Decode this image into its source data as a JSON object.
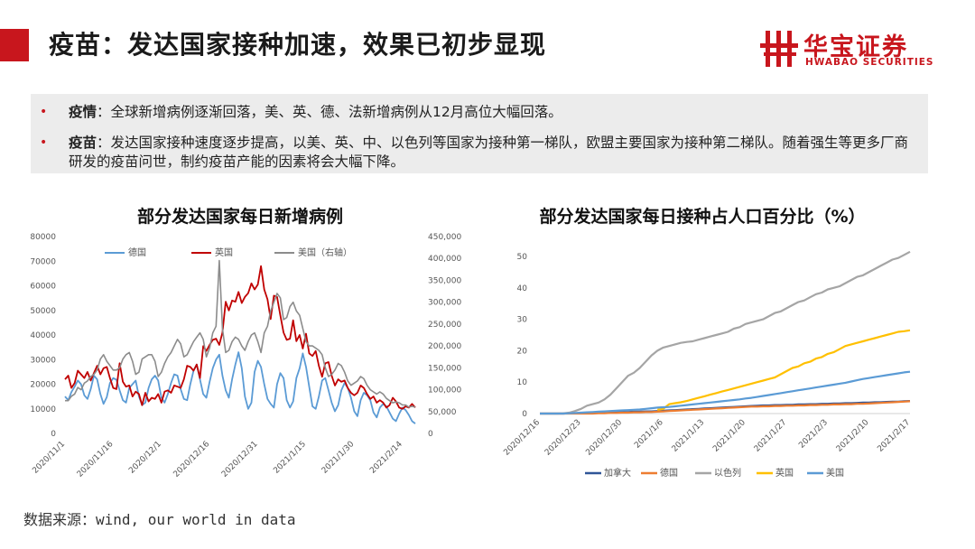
{
  "header": {
    "title": "疫苗：发达国家接种加速，效果已初步显现",
    "logo_cn": "华宝证券",
    "logo_en": "HWABAO SECURITIES",
    "accent_color": "#c8161d"
  },
  "summary": {
    "items": [
      {
        "label": "疫情",
        "text": "：全球新增病例逐渐回落，美、英、德、法新增病例从12月高位大幅回落。"
      },
      {
        "label": "疫苗",
        "text": "：发达国家接种速度逐步提高，以美、英、中、以色列等国家为接种第一梯队，欧盟主要国家为接种第二梯队。随着强生等更多厂商研发的疫苗问世，制约疫苗产能的因素将会大幅下降。"
      }
    ]
  },
  "source": "数据来源：wind, our world in data",
  "chart_data": [
    {
      "type": "line",
      "title": "部分发达国家每日新增病例",
      "x_tick_labels": [
        "2020/11/1",
        "2020/11/16",
        "2020/12/1",
        "2020/12/16",
        "2020/12/31",
        "2021/1/15",
        "2021/1/30",
        "2021/2/14"
      ],
      "y_left": {
        "range": [
          0,
          80000
        ],
        "ticks": [
          "0",
          "10000",
          "20000",
          "30000",
          "40000",
          "50000",
          "60000",
          "70000",
          "80000"
        ]
      },
      "y_right": {
        "range": [
          0,
          450000
        ],
        "ticks": [
          "0",
          "50,000",
          "100,000",
          "150,000",
          "200,000",
          "250,000",
          "300,000",
          "350,000",
          "400,000",
          "450,000"
        ]
      },
      "legend_position": "top",
      "series": [
        {
          "name": "德国",
          "axis": "left",
          "color": "#5b9bd5",
          "values": [
            15000,
            13500,
            16800,
            19000,
            21500,
            20000,
            15500,
            14000,
            18000,
            23500,
            22000,
            16000,
            12000,
            14800,
            20500,
            22500,
            21800,
            17500,
            13500,
            12500,
            18500,
            20000,
            21500,
            15000,
            11500,
            12500,
            18500,
            22000,
            23500,
            21500,
            14500,
            12500,
            16000,
            20500,
            24000,
            23500,
            18000,
            14000,
            13500,
            20000,
            25500,
            28000,
            22000,
            16000,
            14500,
            21000,
            26500,
            30000,
            32000,
            23500,
            17500,
            14500,
            22000,
            28000,
            33000,
            26500,
            15000,
            10000,
            12500,
            25000,
            29500,
            27000,
            20000,
            14000,
            12000,
            10500,
            20000,
            24500,
            22500,
            13500,
            10500,
            13000,
            22500,
            26500,
            32500,
            27000,
            19000,
            11000,
            10000,
            15000,
            21500,
            22500,
            17500,
            12500,
            9000,
            11500,
            17500,
            20500,
            18500,
            14500,
            9000,
            7000,
            13500,
            16500,
            15500,
            13500,
            8500,
            6500,
            10500,
            12000,
            11000,
            8500,
            6000,
            5000,
            8000,
            10500,
            9500,
            7500,
            5000,
            4000
          ]
        },
        {
          "name": "英国",
          "axis": "left",
          "color": "#c00000",
          "values": [
            22000,
            23500,
            18500,
            20500,
            25500,
            24000,
            22500,
            25000,
            21500,
            24500,
            27500,
            24000,
            26500,
            27000,
            22500,
            18500,
            18000,
            28500,
            21000,
            19000,
            19500,
            15000,
            17000,
            16000,
            11500,
            16500,
            13000,
            14500,
            14000,
            16000,
            12500,
            17000,
            17500,
            16500,
            19500,
            19000,
            18500,
            22000,
            27500,
            27000,
            25500,
            28000,
            22500,
            35500,
            33500,
            36000,
            38000,
            38500,
            36000,
            41000,
            53500,
            50000,
            54000,
            53500,
            57500,
            53000,
            55500,
            57000,
            61000,
            58500,
            60500,
            68000,
            58500,
            54500,
            46500,
            56000,
            55500,
            48000,
            41000,
            38000,
            38500,
            46000,
            37500,
            40000,
            34500,
            40500,
            32500,
            31500,
            33500,
            27500,
            23000,
            28500,
            29000,
            23500,
            19500,
            22000,
            21000,
            21500,
            18500,
            16500,
            15500,
            16500,
            19500,
            18500,
            16000,
            14000,
            15000,
            12500,
            13500,
            12500,
            10500,
            11500,
            14500,
            13000,
            10500,
            10000,
            11000,
            10500,
            12000,
            10500
          ]
        },
        {
          "name": "美国（右轴）",
          "axis": "right",
          "color": "#8c8c8c",
          "values": [
            75000,
            75000,
            85000,
            90000,
            105000,
            100000,
            115000,
            120000,
            130000,
            135000,
            145000,
            170000,
            180000,
            165000,
            155000,
            145000,
            145000,
            150000,
            170000,
            180000,
            185000,
            165000,
            135000,
            140000,
            170000,
            175000,
            180000,
            180000,
            165000,
            130000,
            140000,
            160000,
            175000,
            185000,
            200000,
            215000,
            205000,
            175000,
            180000,
            195000,
            210000,
            220000,
            230000,
            215000,
            175000,
            195000,
            230000,
            245000,
            395000,
            240000,
            185000,
            190000,
            210000,
            220000,
            215000,
            200000,
            190000,
            210000,
            225000,
            230000,
            210000,
            185000,
            230000,
            245000,
            280000,
            300000,
            320000,
            310000,
            260000,
            265000,
            290000,
            300000,
            280000,
            270000,
            240000,
            210000,
            200000,
            200000,
            195000,
            190000,
            180000,
            150000,
            130000,
            135000,
            145000,
            160000,
            155000,
            140000,
            120000,
            110000,
            115000,
            120000,
            130000,
            125000,
            110000,
            100000,
            95000,
            90000,
            95000,
            90000,
            80000,
            75000,
            70000,
            72000,
            70000,
            65000,
            65000,
            60000,
            62000,
            60000
          ]
        }
      ]
    },
    {
      "type": "line",
      "title": "部分发达国家每日接种占人口百分比（%）",
      "x_tick_labels": [
        "2020/12/16",
        "2020/12/23",
        "2020/12/30",
        "2021/1/6",
        "2021/1/13",
        "2021/1/20",
        "2021/1/27",
        "2021/2/3",
        "2021/2/10",
        "2021/2/17"
      ],
      "y": {
        "range": [
          0,
          50
        ],
        "ticks": [
          "0",
          "10",
          "20",
          "30",
          "40",
          "50"
        ]
      },
      "legend_position": "bottom",
      "series": [
        {
          "name": "加拿大",
          "color": "#2f5597",
          "values": [
            0,
            0,
            0,
            0,
            0,
            0.1,
            0.1,
            0.1,
            0.2,
            0.2,
            0.3,
            0.3,
            0.4,
            0.4,
            0.5,
            0.5,
            0.6,
            0.6,
            0.7,
            0.7,
            0.8,
            0.9,
            1,
            1.1,
            1.2,
            1.3,
            1.4,
            1.5,
            1.6,
            1.7,
            1.8,
            1.9,
            2,
            2.1,
            2.2,
            2.3,
            2.4,
            2.5,
            2.6,
            2.6,
            2.7,
            2.7,
            2.8,
            2.8,
            2.9,
            2.9,
            3,
            3,
            3.1,
            3.1,
            3.2,
            3.2,
            3.3,
            3.3,
            3.4,
            3.5,
            3.5,
            3.6,
            3.6,
            3.7,
            3.8,
            3.8,
            3.9,
            4
          ]
        },
        {
          "name": "德国",
          "color": "#ed7d31",
          "values": [
            0,
            0,
            0,
            0,
            0,
            0,
            0,
            0,
            0,
            0,
            0.1,
            0.1,
            0.2,
            0.2,
            0.3,
            0.3,
            0.4,
            0.4,
            0.5,
            0.5,
            0.6,
            0.7,
            0.8,
            0.9,
            1,
            1.1,
            1.2,
            1.3,
            1.4,
            1.5,
            1.6,
            1.7,
            1.8,
            1.9,
            2,
            2.1,
            2.2,
            2.2,
            2.3,
            2.3,
            2.4,
            2.4,
            2.5,
            2.5,
            2.6,
            2.6,
            2.7,
            2.7,
            2.8,
            2.8,
            2.9,
            2.9,
            3,
            3,
            3.1,
            3.1,
            3.2,
            3.3,
            3.4,
            3.5,
            3.6,
            3.7,
            3.8,
            3.9
          ]
        },
        {
          "name": "以色列",
          "color": "#a5a5a5",
          "values": [
            0,
            0,
            0,
            0,
            0.1,
            0.3,
            0.8,
            1.5,
            2.5,
            3,
            3.5,
            4.5,
            6,
            8,
            10,
            12,
            13,
            14.5,
            16.5,
            18.5,
            20,
            21,
            21.5,
            22,
            22.5,
            22.8,
            23,
            23.5,
            24,
            24.5,
            25,
            25.5,
            26,
            27,
            27.5,
            28.5,
            29,
            29.5,
            30,
            31,
            32,
            32.5,
            33.5,
            34.5,
            35.5,
            36,
            37,
            38,
            38.5,
            39.5,
            40,
            40.5,
            41.5,
            42.5,
            43.5,
            44,
            45,
            46,
            47,
            48,
            49,
            49.5,
            50.5,
            51.5
          ]
        },
        {
          "name": "英国",
          "color": "#ffc000",
          "values": [
            null,
            null,
            null,
            null,
            null,
            null,
            null,
            null,
            null,
            null,
            null,
            null,
            null,
            null,
            null,
            null,
            null,
            null,
            null,
            null,
            1.2,
            1.5,
            3,
            3.3,
            3.6,
            4,
            4.5,
            5,
            5.5,
            6,
            6.5,
            7,
            7.5,
            8,
            8.5,
            9,
            9.5,
            10,
            10.5,
            11,
            11.5,
            12.5,
            13.5,
            14.5,
            15,
            16,
            16.5,
            17.5,
            18,
            19,
            19.5,
            20.5,
            21.5,
            22,
            22.5,
            23,
            23.5,
            24,
            24.5,
            25,
            25.5,
            26,
            26.2,
            26.5
          ]
        },
        {
          "name": "美国",
          "color": "#5b9bd5",
          "values": [
            0,
            0,
            0,
            0,
            0,
            0.1,
            0.2,
            0.3,
            0.4,
            0.5,
            0.6,
            0.7,
            0.8,
            0.9,
            1,
            1.1,
            1.2,
            1.3,
            1.5,
            1.7,
            1.9,
            2,
            2.1,
            2.3,
            2.5,
            2.7,
            2.9,
            3.1,
            3.3,
            3.5,
            3.7,
            3.9,
            4.1,
            4.3,
            4.5,
            4.8,
            5,
            5.3,
            5.6,
            5.9,
            6.2,
            6.5,
            6.8,
            7.1,
            7.4,
            7.7,
            8,
            8.3,
            8.6,
            8.9,
            9.2,
            9.5,
            9.8,
            10.2,
            10.6,
            11,
            11.3,
            11.6,
            11.9,
            12.2,
            12.5,
            12.8,
            13.1,
            13.3
          ]
        }
      ]
    }
  ]
}
